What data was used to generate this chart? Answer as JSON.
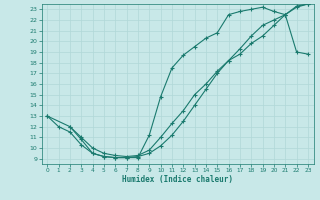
{
  "xlabel": "Humidex (Indice chaleur)",
  "xlim": [
    -0.5,
    23.5
  ],
  "ylim": [
    8.5,
    23.5
  ],
  "xticks": [
    0,
    1,
    2,
    3,
    4,
    5,
    6,
    7,
    8,
    9,
    10,
    11,
    12,
    13,
    14,
    15,
    16,
    17,
    18,
    19,
    20,
    21,
    22,
    23
  ],
  "yticks": [
    9,
    10,
    11,
    12,
    13,
    14,
    15,
    16,
    17,
    18,
    19,
    20,
    21,
    22,
    23
  ],
  "bg_color": "#c8e8e8",
  "line_color": "#1a7a6e",
  "grid_color": "#b0d8d8",
  "line1_x": [
    0,
    1,
    2,
    3,
    4,
    5,
    6,
    7,
    8,
    9,
    10,
    11,
    12,
    13,
    14,
    15,
    16,
    17,
    18,
    19,
    20,
    21,
    22,
    23
  ],
  "line1_y": [
    13,
    12,
    11.5,
    10.3,
    9.5,
    9.2,
    9.1,
    9.1,
    9.1,
    11.2,
    14.8,
    17.5,
    18.7,
    19.5,
    20.3,
    20.8,
    22.5,
    22.8,
    23.0,
    23.2,
    22.8,
    22.5,
    19.0,
    18.8
  ],
  "line2_x": [
    2,
    3,
    4,
    5,
    6,
    7,
    8,
    9,
    10,
    11,
    12,
    13,
    14,
    15,
    16,
    17,
    18,
    19,
    20,
    21,
    22,
    23
  ],
  "line2_y": [
    12.0,
    10.8,
    9.5,
    9.2,
    9.1,
    9.1,
    9.2,
    9.5,
    10.2,
    11.2,
    12.5,
    14.0,
    15.5,
    17.0,
    18.2,
    19.3,
    20.5,
    21.5,
    22.0,
    22.5,
    23.2,
    23.5
  ],
  "line3_x": [
    0,
    2,
    3,
    4,
    5,
    6,
    7,
    8,
    9,
    10,
    11,
    12,
    13,
    14,
    15,
    16,
    17,
    18,
    19,
    20,
    21,
    22,
    23
  ],
  "line3_y": [
    13,
    12,
    11,
    10,
    9.5,
    9.3,
    9.2,
    9.3,
    9.8,
    11.0,
    12.3,
    13.5,
    15.0,
    16.0,
    17.2,
    18.2,
    18.8,
    19.8,
    20.5,
    21.5,
    22.5,
    23.3,
    23.5
  ]
}
